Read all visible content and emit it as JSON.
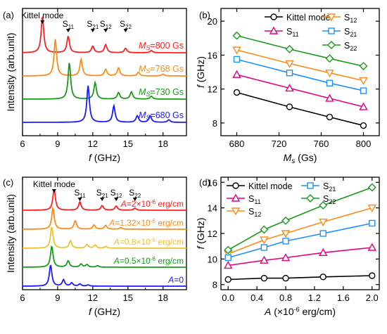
{
  "chart_data": [
    {
      "panel": "(a)",
      "type": "line",
      "xlabel": "f (GHz)",
      "ylabel": "Intensity (arb.unit)",
      "xlim": [
        6,
        20
      ],
      "xticks": [
        6,
        9,
        12,
        15,
        18
      ],
      "xtick_labels": [
        "6",
        "9",
        "12",
        "15",
        "18"
      ],
      "grid": false,
      "peak_labels": [
        {
          "text": "Kittel mode",
          "main": "Kittel mode",
          "sub": "",
          "x": 7.7
        },
        {
          "text": "S11",
          "main": "S",
          "sub": "11",
          "x": 9.9
        },
        {
          "text": "S21",
          "main": "S",
          "sub": "21",
          "x": 12.0
        },
        {
          "text": "S12",
          "main": "S",
          "sub": "12",
          "x": 13.1
        },
        {
          "text": "S22",
          "main": "S",
          "sub": "22",
          "x": 14.8
        }
      ],
      "series": [
        {
          "name": "MS=800 Gs",
          "label_var": "M",
          "label_sub": "S",
          "label_value": "=800 Gs",
          "color": "#ff1f1f",
          "peaks": [
            {
              "x": 7.7,
              "h": 1.0
            },
            {
              "x": 9.9,
              "h": 0.45
            },
            {
              "x": 12.0,
              "h": 0.18
            },
            {
              "x": 13.1,
              "h": 0.22
            },
            {
              "x": 14.8,
              "h": 0.12
            },
            {
              "x": 17.0,
              "h": 0.06
            }
          ]
        },
        {
          "name": "MS=768 Gs",
          "label_var": "M",
          "label_sub": "S",
          "label_value": "=768 Gs",
          "color": "#ff8c1a",
          "peaks": [
            {
              "x": 8.8,
              "h": 1.0
            },
            {
              "x": 11.0,
              "h": 0.45
            },
            {
              "x": 13.1,
              "h": 0.18
            },
            {
              "x": 14.2,
              "h": 0.22
            },
            {
              "x": 15.9,
              "h": 0.1
            },
            {
              "x": 18.0,
              "h": 0.05
            }
          ]
        },
        {
          "name": "MS=730 Gs",
          "label_var": "M",
          "label_sub": "S",
          "label_value": "=730 Gs",
          "color": "#1a9a1a",
          "peaks": [
            {
              "x": 10.0,
              "h": 1.0
            },
            {
              "x": 12.2,
              "h": 0.45
            },
            {
              "x": 14.2,
              "h": 0.18
            },
            {
              "x": 15.3,
              "h": 0.2
            },
            {
              "x": 17.0,
              "h": 0.08
            }
          ]
        },
        {
          "name": "MS=680 Gs",
          "label_var": "M",
          "label_sub": "S",
          "label_value": "=680 Gs",
          "color": "#1a1aff",
          "peaks": [
            {
              "x": 11.6,
              "h": 1.0
            },
            {
              "x": 13.8,
              "h": 0.45
            },
            {
              "x": 15.8,
              "h": 0.18
            },
            {
              "x": 16.9,
              "h": 0.18
            },
            {
              "x": 18.5,
              "h": 0.07
            }
          ]
        }
      ]
    },
    {
      "panel": "(b)",
      "type": "line",
      "xlabel": "Ms (Gs)",
      "ylabel": "f (GHz)",
      "x": [
        680,
        730,
        768,
        800
      ],
      "xlim": [
        665,
        815
      ],
      "ylim": [
        6.5,
        21.5
      ],
      "xticks": [
        680,
        720,
        760,
        800
      ],
      "yticks": [
        8,
        12,
        16,
        20
      ],
      "legend": "top",
      "grid": false,
      "series": [
        {
          "name": "Kittel mode",
          "label_main": "Kittel mode",
          "label_sub": "",
          "color": "#000000",
          "marker": "circle",
          "values": [
            11.6,
            9.9,
            8.7,
            7.7
          ]
        },
        {
          "name": "S11",
          "label_main": "S",
          "label_sub": "11",
          "color": "#e6007e",
          "marker": "triangle-up",
          "values": [
            13.7,
            12.1,
            10.9,
            9.9
          ]
        },
        {
          "name": "S12",
          "label_main": "S",
          "label_sub": "12",
          "color": "#ff8c1a",
          "marker": "triangle-down",
          "values": [
            16.6,
            15.0,
            13.9,
            13.0
          ]
        },
        {
          "name": "S21",
          "label_main": "S",
          "label_sub": "21",
          "color": "#1e90ff",
          "marker": "square",
          "values": [
            15.5,
            13.9,
            12.7,
            11.8
          ]
        },
        {
          "name": "S22",
          "label_main": "S",
          "label_sub": "22",
          "color": "#1a9a1a",
          "marker": "diamond",
          "values": [
            18.3,
            16.7,
            15.6,
            14.7
          ]
        }
      ]
    },
    {
      "panel": "(c)",
      "type": "line",
      "xlabel": "f (GHz)",
      "ylabel": "Intensity (arb.unit)",
      "xlim": [
        6,
        20
      ],
      "xticks": [
        6,
        9,
        12,
        15,
        18
      ],
      "xtick_labels": [
        "6",
        "9",
        "12",
        "15",
        "18"
      ],
      "grid": false,
      "peak_labels": [
        {
          "text": "Kittel mode",
          "main": "Kittel mode",
          "sub": "",
          "x": 8.7
        },
        {
          "text": "S11",
          "main": "S",
          "sub": "11",
          "x": 10.9
        },
        {
          "text": "S21",
          "main": "S",
          "sub": "21",
          "x": 12.8
        },
        {
          "text": "S12",
          "main": "S",
          "sub": "12",
          "x": 14.0
        },
        {
          "text": "S22",
          "main": "S",
          "sub": "22",
          "x": 15.6
        }
      ],
      "series": [
        {
          "name": "A=2×10-6 erg/cm",
          "label_var": "A",
          "label_value": "=2×10",
          "label_exp": "-6",
          "label_unit": " erg/cm",
          "color": "#ff1f1f",
          "peaks": [
            {
              "x": 8.7,
              "h": 1.0
            },
            {
              "x": 10.9,
              "h": 0.4
            },
            {
              "x": 12.8,
              "h": 0.22
            },
            {
              "x": 14.0,
              "h": 0.2
            },
            {
              "x": 15.6,
              "h": 0.1
            }
          ]
        },
        {
          "name": "A=1.32×10-6 erg/cm",
          "label_var": "A",
          "label_value": "=1.32×10",
          "label_exp": "-6",
          "label_unit": " erg/cm",
          "color": "#ff8c1a",
          "peaks": [
            {
              "x": 8.6,
              "h": 1.0
            },
            {
              "x": 10.5,
              "h": 0.4
            },
            {
              "x": 12.1,
              "h": 0.2
            },
            {
              "x": 13.1,
              "h": 0.18
            },
            {
              "x": 14.4,
              "h": 0.08
            }
          ]
        },
        {
          "name": "A=0.8×10-6 erg/cm",
          "label_var": "A",
          "label_value": "=0.8×10",
          "label_exp": "-6",
          "label_unit": " erg/cm",
          "color": "#f2c12e",
          "peaks": [
            {
              "x": 8.5,
              "h": 1.0
            },
            {
              "x": 10.1,
              "h": 0.35
            },
            {
              "x": 11.5,
              "h": 0.18
            },
            {
              "x": 12.2,
              "h": 0.15
            },
            {
              "x": 13.1,
              "h": 0.08
            }
          ]
        },
        {
          "name": "A=0.5×10-6 erg/cm",
          "label_var": "A",
          "label_value": "=0.5×10",
          "label_exp": "-6",
          "label_unit": " erg/cm",
          "color": "#1a9a1a",
          "peaks": [
            {
              "x": 8.5,
              "h": 1.0
            },
            {
              "x": 9.9,
              "h": 0.3
            },
            {
              "x": 11.0,
              "h": 0.15
            },
            {
              "x": 11.5,
              "h": 0.12
            },
            {
              "x": 12.4,
              "h": 0.07
            }
          ]
        },
        {
          "name": "A=0",
          "label_var": "A",
          "label_value": "=0",
          "label_exp": "",
          "label_unit": "",
          "color": "#1a1aff",
          "peaks": [
            {
              "x": 8.4,
              "h": 1.0
            },
            {
              "x": 9.5,
              "h": 0.3
            },
            {
              "x": 10.2,
              "h": 0.15
            },
            {
              "x": 10.9,
              "h": 0.1
            },
            {
              "x": 11.6,
              "h": 0.06
            }
          ]
        }
      ]
    },
    {
      "panel": "(d)",
      "type": "line",
      "xlabel": "A (×10-6 erg/cm)",
      "ylabel": "f (GHz)",
      "x": [
        0,
        0.5,
        0.8,
        1.32,
        2.0
      ],
      "xlim": [
        -0.1,
        2.1
      ],
      "ylim": [
        7.6,
        16.4
      ],
      "xticks": [
        0.0,
        0.4,
        0.8,
        1.2,
        1.6,
        2.0
      ],
      "xtick_labels": [
        "0.0",
        "0.4",
        "0.8",
        "1.2",
        "1.6",
        "2.0"
      ],
      "yticks": [
        8,
        10,
        12,
        14,
        16
      ],
      "legend": "top-left",
      "grid": false,
      "series": [
        {
          "name": "Kittel mode",
          "label_main": "Kittel mode",
          "label_sub": "",
          "color": "#000000",
          "marker": "circle",
          "values": [
            8.4,
            8.5,
            8.5,
            8.6,
            8.7
          ]
        },
        {
          "name": "S11",
          "label_main": "S",
          "label_sub": "11",
          "color": "#e6007e",
          "marker": "triangle-up",
          "values": [
            9.5,
            9.9,
            10.1,
            10.5,
            10.9
          ]
        },
        {
          "name": "S12",
          "label_main": "S",
          "label_sub": "12",
          "color": "#ff8c1a",
          "marker": "triangle-down",
          "values": [
            10.4,
            11.5,
            12.0,
            12.9,
            14.0
          ]
        },
        {
          "name": "S21",
          "label_main": "S",
          "label_sub": "21",
          "color": "#1e90ff",
          "marker": "square",
          "values": [
            10.1,
            10.9,
            11.4,
            12.0,
            12.8
          ]
        },
        {
          "name": "S22",
          "label_main": "S",
          "label_sub": "22",
          "color": "#1a9a1a",
          "marker": "diamond",
          "values": [
            10.7,
            12.3,
            13.0,
            14.2,
            15.6
          ]
        }
      ]
    }
  ]
}
